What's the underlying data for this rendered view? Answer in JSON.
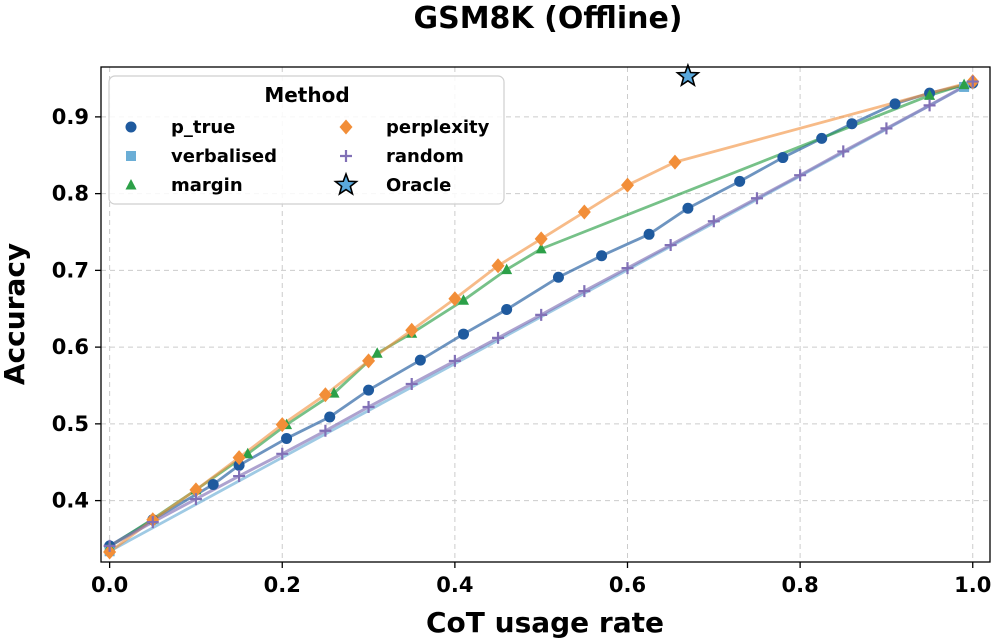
{
  "chart_data": {
    "type": "line",
    "title": "GSM8K (Offline)",
    "xlabel": "CoT usage rate",
    "ylabel": "Accuracy",
    "xlim": [
      -0.01,
      1.02
    ],
    "ylim": [
      0.32,
      0.965
    ],
    "x_ticks": [
      0.0,
      0.2,
      0.4,
      0.6,
      0.8,
      1.0
    ],
    "y_ticks": [
      0.4,
      0.5,
      0.6,
      0.7,
      0.8,
      0.9
    ],
    "x_tick_labels": [
      "0.0",
      "0.2",
      "0.4",
      "0.6",
      "0.8",
      "1.0"
    ],
    "y_tick_labels": [
      "0.4",
      "0.5",
      "0.6",
      "0.7",
      "0.8",
      "0.9"
    ],
    "grid": true,
    "legend": {
      "title": "Method",
      "placement": "top-left",
      "columns": 2
    },
    "series": [
      {
        "name": "p_true",
        "color": "#1f5a9e",
        "marker": "circle",
        "x": [
          0.0,
          0.05,
          0.12,
          0.15,
          0.205,
          0.255,
          0.3,
          0.36,
          0.41,
          0.46,
          0.52,
          0.57,
          0.625,
          0.67,
          0.73,
          0.78,
          0.825,
          0.86,
          0.91,
          0.95,
          1.0
        ],
        "y": [
          0.341,
          0.375,
          0.421,
          0.446,
          0.481,
          0.509,
          0.544,
          0.583,
          0.617,
          0.649,
          0.691,
          0.719,
          0.747,
          0.781,
          0.816,
          0.847,
          0.872,
          0.891,
          0.917,
          0.931,
          0.944
        ]
      },
      {
        "name": "verbalised",
        "color": "#6baed6",
        "marker": "square",
        "x": [
          0.0,
          0.99
        ],
        "y": [
          0.334,
          0.939
        ]
      },
      {
        "name": "margin",
        "color": "#2ca048",
        "marker": "triangle",
        "x": [
          0.0,
          0.05,
          0.1,
          0.16,
          0.205,
          0.26,
          0.31,
          0.35,
          0.41,
          0.46,
          0.5,
          0.95,
          0.99
        ],
        "y": [
          0.34,
          0.376,
          0.414,
          0.461,
          0.499,
          0.54,
          0.592,
          0.618,
          0.661,
          0.701,
          0.728,
          0.928,
          0.942
        ]
      },
      {
        "name": "perplexity",
        "color": "#f28e38",
        "marker": "diamond",
        "x": [
          0.0,
          0.05,
          0.1,
          0.15,
          0.2,
          0.25,
          0.3,
          0.35,
          0.4,
          0.45,
          0.5,
          0.55,
          0.6,
          0.655,
          1.0
        ],
        "y": [
          0.333,
          0.375,
          0.414,
          0.456,
          0.499,
          0.538,
          0.582,
          0.622,
          0.663,
          0.706,
          0.741,
          0.776,
          0.811,
          0.841,
          0.946
        ]
      },
      {
        "name": "random",
        "color": "#8170b6",
        "marker": "plus",
        "x": [
          0.0,
          0.05,
          0.1,
          0.15,
          0.2,
          0.25,
          0.3,
          0.35,
          0.4,
          0.45,
          0.5,
          0.55,
          0.6,
          0.65,
          0.7,
          0.75,
          0.8,
          0.85,
          0.9,
          0.95,
          1.0
        ],
        "y": [
          0.341,
          0.372,
          0.402,
          0.432,
          0.461,
          0.491,
          0.522,
          0.552,
          0.582,
          0.612,
          0.642,
          0.673,
          0.703,
          0.733,
          0.764,
          0.794,
          0.824,
          0.855,
          0.885,
          0.915,
          0.946
        ]
      },
      {
        "name": "Oracle",
        "color": "#5aa9dd",
        "marker": "star",
        "x": [
          0.67
        ],
        "y": [
          0.953
        ]
      }
    ]
  }
}
